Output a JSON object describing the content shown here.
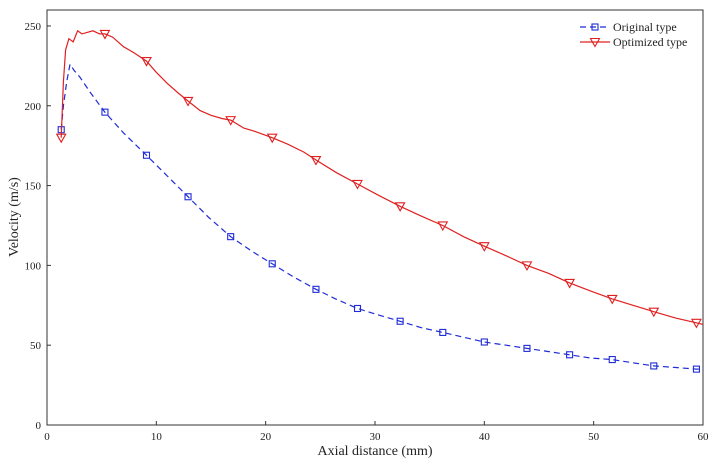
{
  "chart_data": {
    "type": "line",
    "xlabel": "Axial distance (mm)",
    "ylabel": "Velocity (m/s)",
    "xlim": [
      0,
      60
    ],
    "ylim": [
      0,
      260
    ],
    "xticks": [
      0,
      10,
      20,
      30,
      40,
      50,
      60
    ],
    "yticks": [
      0,
      50,
      100,
      150,
      200,
      250
    ],
    "grid": false,
    "legend_position": "top-right",
    "series": [
      {
        "name": "Original type",
        "color": "#1f2bd6",
        "line_style": "dashed",
        "marker": "square",
        "x": [
          1.3,
          1.5,
          1.8,
          2.1,
          2.5,
          3,
          4,
          5.3,
          7,
          9.1,
          11,
          12.9,
          14.8,
          16.8,
          18.7,
          20.6,
          22.5,
          24.6,
          26.4,
          28.4,
          30.3,
          32.3,
          34.2,
          36.2,
          38.1,
          40.0,
          42.0,
          43.9,
          45.9,
          47.8,
          49.7,
          51.7,
          53.6,
          55.5,
          57.5,
          59.4,
          60
        ],
        "y": [
          185,
          200,
          215,
          226,
          222,
          218,
          208,
          196,
          183,
          169,
          156,
          143,
          130,
          118,
          109,
          101,
          93,
          85,
          79,
          73,
          69,
          65,
          61,
          58,
          55,
          52,
          50,
          48,
          46,
          44,
          42,
          41,
          39,
          37,
          36,
          35,
          35
        ],
        "marker_x": [
          1.3,
          5.3,
          9.1,
          12.9,
          16.8,
          20.6,
          24.6,
          28.4,
          32.3,
          36.2,
          40.0,
          43.9,
          47.8,
          51.7,
          55.5,
          59.4
        ],
        "marker_y": [
          185,
          196,
          169,
          143,
          118,
          101,
          85,
          73,
          65,
          58,
          52,
          48,
          44,
          41,
          37,
          35
        ]
      },
      {
        "name": "Optimized type",
        "color": "#e02020",
        "line_style": "solid",
        "marker": "triangle-down",
        "x": [
          1.3,
          1.5,
          1.7,
          2.0,
          2.4,
          2.8,
          3.2,
          3.7,
          4.2,
          4.8,
          5.3,
          6,
          7,
          8,
          9.1,
          10,
          11,
          12,
          12.9,
          14,
          15,
          16,
          16.8,
          18,
          19,
          20.6,
          22,
          23.5,
          24.6,
          26.5,
          28.4,
          30.3,
          32.3,
          34.2,
          36.2,
          38.1,
          40.0,
          42,
          43.9,
          45.9,
          47.8,
          49.7,
          51.7,
          53.6,
          55.5,
          57.5,
          59.4,
          60
        ],
        "y": [
          180,
          215,
          235,
          242,
          240,
          247,
          245,
          246,
          247,
          245,
          245,
          243,
          237,
          233,
          228,
          221,
          214,
          208,
          203,
          197,
          194,
          192,
          191,
          186,
          184,
          180,
          176,
          171,
          166,
          158,
          151,
          144,
          137,
          131,
          125,
          118,
          112,
          106,
          100,
          95,
          89,
          84,
          79,
          75,
          71,
          67,
          64,
          63
        ],
        "marker_x": [
          1.3,
          5.3,
          9.1,
          12.9,
          16.8,
          20.6,
          24.6,
          28.4,
          32.3,
          36.2,
          40.0,
          43.9,
          47.8,
          51.7,
          55.5,
          59.4
        ],
        "marker_y": [
          180,
          245,
          228,
          203,
          191,
          180,
          166,
          151,
          137,
          125,
          112,
          100,
          89,
          79,
          71,
          64
        ]
      }
    ]
  }
}
